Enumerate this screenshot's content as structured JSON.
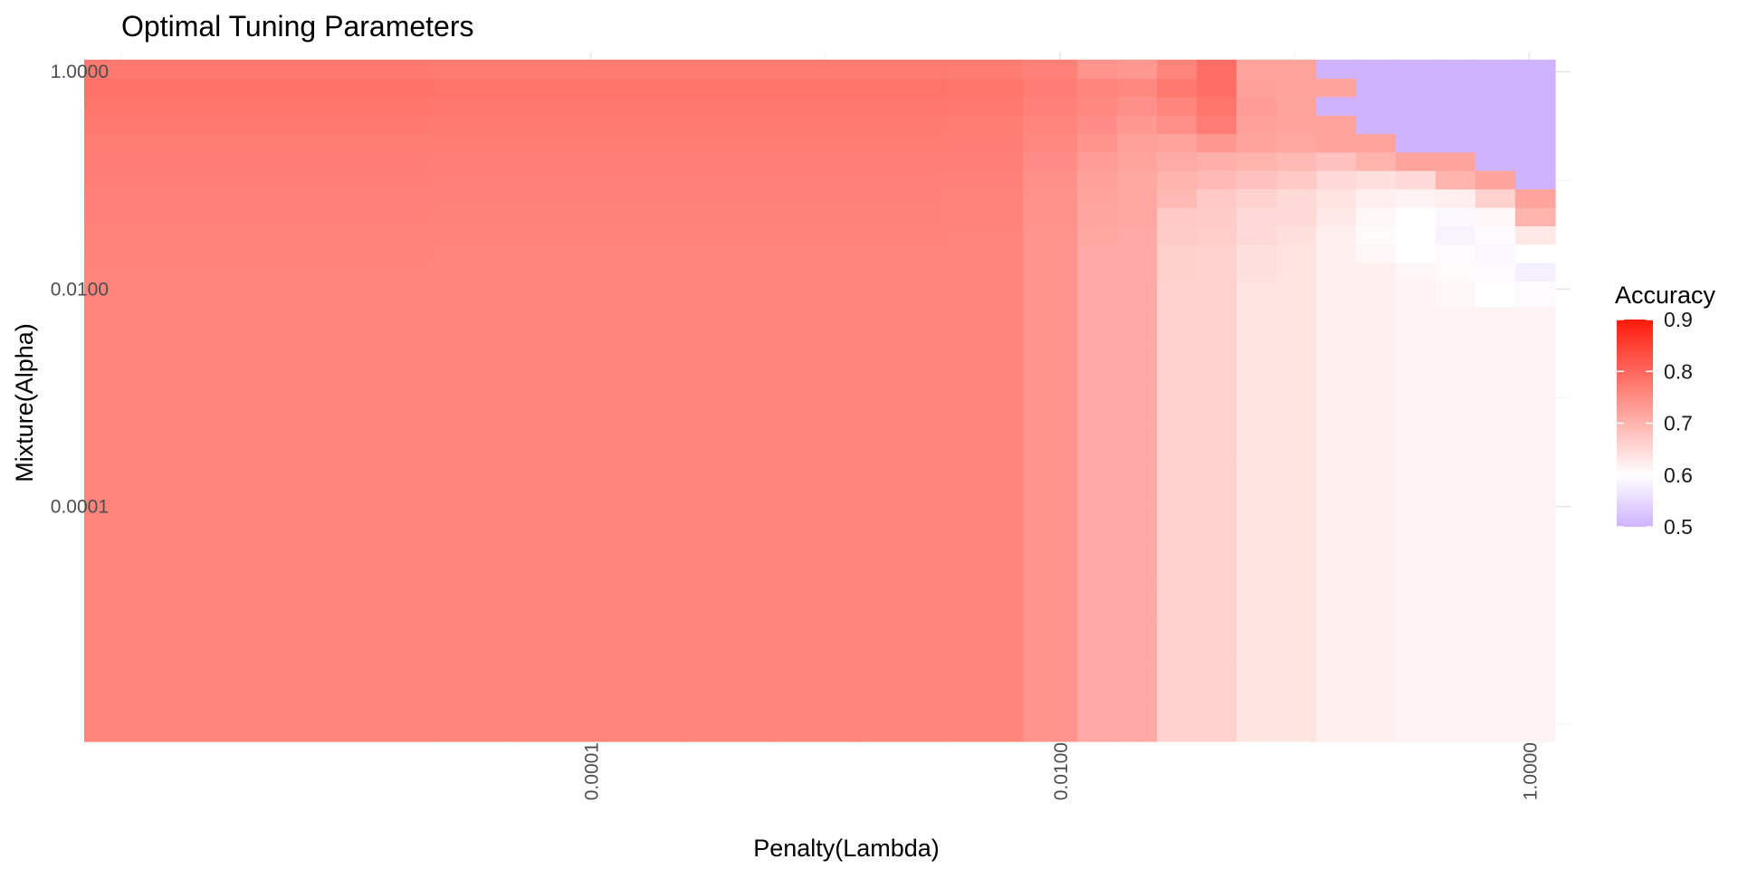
{
  "chart_data": {
    "type": "heatmap",
    "title": "Optimal Tuning Parameters",
    "xlabel": "Penalty(Lambda)",
    "ylabel": "Mixture(Alpha)",
    "x_scale": "log10",
    "y_scale": "log10",
    "x_range": [
      1e-06,
      1.5
    ],
    "y_range": [
      1e-06,
      1.5
    ],
    "x_tick_values": [
      0.0001,
      0.01,
      1
    ],
    "x_tick_labels": [
      "0.0001",
      "0.0100",
      "1.0000"
    ],
    "y_tick_values": [
      0.0001,
      0.01,
      1
    ],
    "y_tick_labels": [
      "0.0001",
      "0.0100",
      "1.0000"
    ],
    "grid": true,
    "x_values": [
      1.06e-06,
      2.47e-06,
      5.74e-06,
      1.34e-05,
      3.12e-05,
      7.26e-05,
      0.000169,
      0.000393,
      0.000913,
      0.00212,
      0.00494,
      0.00977,
      0.0144,
      0.0213,
      0.0315,
      0.0465,
      0.0687,
      0.102,
      0.15,
      0.222,
      0.328,
      0.485,
      0.716,
      1.06
    ],
    "y_values": [
      1.06e-06,
      2.47e-06,
      5.74e-06,
      1.34e-05,
      3.12e-05,
      7.26e-05,
      0.000169,
      0.000393,
      0.000913,
      0.00212,
      0.00494,
      0.00977,
      0.0144,
      0.0213,
      0.0315,
      0.0465,
      0.0687,
      0.102,
      0.15,
      0.222,
      0.328,
      0.485,
      0.716,
      1.06
    ],
    "z_matrix": [
      [
        0.76,
        0.76,
        0.76,
        0.76,
        0.759,
        0.759,
        0.759,
        0.759,
        0.759,
        0.759,
        0.759,
        0.74,
        0.712,
        0.712,
        0.66,
        0.66,
        0.635,
        0.635,
        0.62,
        0.62,
        0.615,
        0.615,
        0.615,
        0.615
      ],
      [
        0.76,
        0.76,
        0.76,
        0.76,
        0.759,
        0.759,
        0.759,
        0.759,
        0.759,
        0.759,
        0.759,
        0.74,
        0.712,
        0.712,
        0.66,
        0.66,
        0.635,
        0.635,
        0.62,
        0.62,
        0.615,
        0.615,
        0.615,
        0.615
      ],
      [
        0.76,
        0.76,
        0.76,
        0.76,
        0.759,
        0.759,
        0.759,
        0.759,
        0.759,
        0.759,
        0.759,
        0.74,
        0.712,
        0.712,
        0.66,
        0.66,
        0.635,
        0.635,
        0.62,
        0.62,
        0.615,
        0.615,
        0.615,
        0.615
      ],
      [
        0.76,
        0.76,
        0.76,
        0.76,
        0.759,
        0.759,
        0.759,
        0.759,
        0.759,
        0.759,
        0.759,
        0.74,
        0.712,
        0.712,
        0.66,
        0.66,
        0.635,
        0.635,
        0.62,
        0.62,
        0.615,
        0.615,
        0.615,
        0.615
      ],
      [
        0.76,
        0.76,
        0.76,
        0.76,
        0.759,
        0.759,
        0.759,
        0.759,
        0.759,
        0.759,
        0.759,
        0.74,
        0.712,
        0.712,
        0.66,
        0.66,
        0.635,
        0.635,
        0.62,
        0.62,
        0.615,
        0.615,
        0.615,
        0.615
      ],
      [
        0.76,
        0.76,
        0.76,
        0.76,
        0.759,
        0.759,
        0.759,
        0.759,
        0.759,
        0.759,
        0.759,
        0.74,
        0.712,
        0.712,
        0.66,
        0.66,
        0.635,
        0.635,
        0.62,
        0.62,
        0.615,
        0.615,
        0.615,
        0.615
      ],
      [
        0.76,
        0.76,
        0.76,
        0.76,
        0.759,
        0.759,
        0.759,
        0.759,
        0.759,
        0.759,
        0.759,
        0.74,
        0.712,
        0.712,
        0.66,
        0.66,
        0.635,
        0.635,
        0.62,
        0.62,
        0.615,
        0.615,
        0.615,
        0.615
      ],
      [
        0.76,
        0.76,
        0.76,
        0.76,
        0.759,
        0.759,
        0.759,
        0.759,
        0.759,
        0.759,
        0.759,
        0.74,
        0.712,
        0.712,
        0.66,
        0.66,
        0.635,
        0.635,
        0.62,
        0.62,
        0.615,
        0.615,
        0.615,
        0.615
      ],
      [
        0.76,
        0.76,
        0.76,
        0.76,
        0.759,
        0.759,
        0.759,
        0.759,
        0.759,
        0.759,
        0.759,
        0.74,
        0.712,
        0.712,
        0.66,
        0.66,
        0.635,
        0.635,
        0.62,
        0.62,
        0.615,
        0.615,
        0.615,
        0.615
      ],
      [
        0.76,
        0.76,
        0.76,
        0.76,
        0.759,
        0.759,
        0.759,
        0.759,
        0.759,
        0.759,
        0.759,
        0.74,
        0.712,
        0.712,
        0.66,
        0.66,
        0.635,
        0.635,
        0.62,
        0.62,
        0.615,
        0.615,
        0.615,
        0.615
      ],
      [
        0.76,
        0.76,
        0.76,
        0.76,
        0.759,
        0.759,
        0.759,
        0.759,
        0.759,
        0.759,
        0.759,
        0.74,
        0.712,
        0.712,
        0.66,
        0.66,
        0.635,
        0.635,
        0.62,
        0.62,
        0.615,
        0.615,
        0.615,
        0.615
      ],
      [
        0.76,
        0.76,
        0.76,
        0.76,
        0.759,
        0.759,
        0.759,
        0.759,
        0.759,
        0.759,
        0.759,
        0.74,
        0.712,
        0.712,
        0.66,
        0.66,
        0.635,
        0.635,
        0.62,
        0.62,
        0.615,
        0.61,
        0.6,
        0.595
      ],
      [
        0.76,
        0.76,
        0.76,
        0.76,
        0.76,
        0.76,
        0.76,
        0.76,
        0.76,
        0.76,
        0.759,
        0.74,
        0.712,
        0.712,
        0.662,
        0.66,
        0.64,
        0.635,
        0.62,
        0.62,
        0.61,
        0.605,
        0.595,
        0.58
      ],
      [
        0.762,
        0.762,
        0.762,
        0.762,
        0.761,
        0.761,
        0.761,
        0.761,
        0.761,
        0.761,
        0.76,
        0.74,
        0.712,
        0.712,
        0.662,
        0.66,
        0.64,
        0.635,
        0.62,
        0.61,
        0.6,
        0.595,
        0.59,
        0.6
      ],
      [
        0.762,
        0.762,
        0.762,
        0.762,
        0.762,
        0.762,
        0.762,
        0.762,
        0.762,
        0.762,
        0.76,
        0.74,
        0.715,
        0.712,
        0.668,
        0.665,
        0.65,
        0.64,
        0.62,
        0.605,
        0.6,
        0.585,
        0.595,
        0.63
      ],
      [
        0.765,
        0.765,
        0.765,
        0.765,
        0.764,
        0.764,
        0.764,
        0.764,
        0.764,
        0.764,
        0.762,
        0.742,
        0.718,
        0.715,
        0.67,
        0.668,
        0.65,
        0.65,
        0.63,
        0.61,
        0.6,
        0.59,
        0.61,
        0.7
      ],
      [
        0.765,
        0.765,
        0.765,
        0.765,
        0.765,
        0.765,
        0.765,
        0.765,
        0.765,
        0.765,
        0.762,
        0.742,
        0.72,
        0.715,
        0.69,
        0.67,
        0.66,
        0.65,
        0.635,
        0.62,
        0.615,
        0.62,
        0.66,
        0.72
      ],
      [
        0.768,
        0.768,
        0.768,
        0.768,
        0.767,
        0.767,
        0.767,
        0.767,
        0.767,
        0.767,
        0.765,
        0.745,
        0.725,
        0.715,
        0.7,
        0.69,
        0.68,
        0.67,
        0.65,
        0.64,
        0.65,
        0.7,
        0.72,
        0.5
      ],
      [
        0.77,
        0.77,
        0.77,
        0.77,
        0.769,
        0.769,
        0.769,
        0.769,
        0.769,
        0.769,
        0.768,
        0.75,
        0.73,
        0.72,
        0.71,
        0.705,
        0.7,
        0.69,
        0.68,
        0.7,
        0.72,
        0.72,
        0.5,
        0.5
      ],
      [
        0.772,
        0.772,
        0.772,
        0.772,
        0.771,
        0.771,
        0.771,
        0.771,
        0.771,
        0.771,
        0.77,
        0.755,
        0.74,
        0.725,
        0.72,
        0.735,
        0.72,
        0.715,
        0.72,
        0.72,
        0.5,
        0.5,
        0.5,
        0.5
      ],
      [
        0.775,
        0.775,
        0.775,
        0.775,
        0.774,
        0.774,
        0.774,
        0.774,
        0.774,
        0.774,
        0.772,
        0.76,
        0.75,
        0.735,
        0.745,
        0.77,
        0.725,
        0.72,
        0.72,
        0.5,
        0.5,
        0.5,
        0.5,
        0.5
      ],
      [
        0.78,
        0.78,
        0.78,
        0.78,
        0.778,
        0.778,
        0.778,
        0.778,
        0.778,
        0.778,
        0.775,
        0.765,
        0.755,
        0.745,
        0.76,
        0.78,
        0.73,
        0.72,
        0.5,
        0.5,
        0.5,
        0.5,
        0.5,
        0.5
      ],
      [
        0.785,
        0.785,
        0.785,
        0.785,
        0.783,
        0.783,
        0.783,
        0.783,
        0.783,
        0.783,
        0.78,
        0.77,
        0.76,
        0.755,
        0.775,
        0.79,
        0.725,
        0.72,
        0.72,
        0.5,
        0.5,
        0.5,
        0.5,
        0.5
      ],
      [
        0.775,
        0.775,
        0.775,
        0.775,
        0.774,
        0.774,
        0.774,
        0.774,
        0.774,
        0.774,
        0.772,
        0.765,
        0.74,
        0.735,
        0.76,
        0.79,
        0.72,
        0.72,
        0.5,
        0.5,
        0.5,
        0.5,
        0.5,
        0.5
      ]
    ],
    "colorscale": {
      "low_value": 0.5,
      "low_color": "#cfb3ff",
      "mid_value": 0.6,
      "mid_color": "#ffffff",
      "high_value": 0.9,
      "high_color": "#ff1a0a"
    },
    "legend": {
      "title": "Accuracy",
      "tick_values": [
        0.9,
        0.8,
        0.7,
        0.6,
        0.5
      ],
      "tick_labels": [
        "0.9",
        "0.8",
        "0.7",
        "0.6",
        "0.5"
      ],
      "position": "right"
    }
  }
}
